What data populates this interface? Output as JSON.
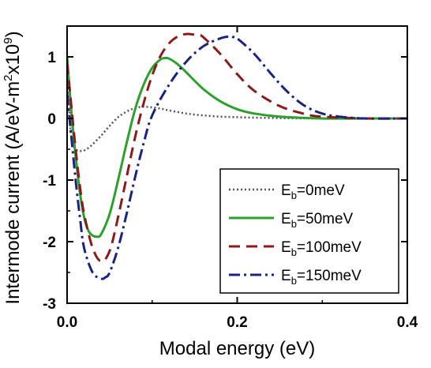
{
  "chart_data": {
    "type": "line",
    "xlabel": "Modal energy (eV)",
    "ylabel": "Intermode current (A/eV-m²x10⁹)",
    "xlim": [
      0.0,
      0.4
    ],
    "ylim": [
      -3.0,
      1.5
    ],
    "xticks": [
      0.0,
      0.2,
      0.4
    ],
    "xtick_labels": [
      "0.0",
      "0.2",
      "0.4"
    ],
    "yticks": [
      -3,
      -2,
      -1,
      0,
      1
    ],
    "ytick_labels": [
      "-3",
      "-2",
      "-1",
      "0",
      "1"
    ],
    "grid": false,
    "legend_position": "bottom-right",
    "series": [
      {
        "name": "Eb=0meV",
        "label_main": "E",
        "label_sub": "b",
        "label_rest": "=0meV",
        "color": "#555555",
        "dash": "dotted",
        "x": [
          0.0,
          0.004,
          0.008,
          0.012,
          0.016,
          0.02,
          0.025,
          0.03,
          0.04,
          0.05,
          0.06,
          0.07,
          0.08,
          0.09,
          0.1,
          0.11,
          0.12,
          0.14,
          0.16,
          0.18,
          0.2,
          0.25,
          0.3,
          0.35,
          0.4
        ],
        "y": [
          0.75,
          -0.2,
          -0.45,
          -0.52,
          -0.53,
          -0.52,
          -0.48,
          -0.42,
          -0.28,
          -0.12,
          0.02,
          0.11,
          0.17,
          0.19,
          0.18,
          0.16,
          0.13,
          0.08,
          0.05,
          0.03,
          0.02,
          0.005,
          0.0,
          0.0,
          0.0
        ]
      },
      {
        "name": "Eb=50meV",
        "label_main": "E",
        "label_sub": "b",
        "label_rest": "=50meV",
        "color": "#2ca02c",
        "dash": "solid",
        "x": [
          0.0,
          0.005,
          0.01,
          0.015,
          0.02,
          0.025,
          0.03,
          0.035,
          0.04,
          0.05,
          0.06,
          0.07,
          0.08,
          0.09,
          0.1,
          0.11,
          0.115,
          0.12,
          0.13,
          0.14,
          0.16,
          0.18,
          0.2,
          0.22,
          0.25,
          0.3,
          0.35,
          0.4
        ],
        "y": [
          1.0,
          0.1,
          -0.6,
          -1.2,
          -1.6,
          -1.82,
          -1.9,
          -1.92,
          -1.88,
          -1.55,
          -1.0,
          -0.4,
          0.15,
          0.55,
          0.82,
          0.96,
          0.98,
          0.97,
          0.88,
          0.75,
          0.48,
          0.28,
          0.15,
          0.08,
          0.03,
          0.0,
          0.0,
          0.0
        ]
      },
      {
        "name": "Eb=100meV",
        "label_main": "E",
        "label_sub": "b",
        "label_rest": "=100meV",
        "color": "#8b1a1a",
        "dash": "dashed",
        "x": [
          0.0,
          0.005,
          0.01,
          0.015,
          0.02,
          0.03,
          0.04,
          0.05,
          0.06,
          0.07,
          0.08,
          0.09,
          0.1,
          0.11,
          0.12,
          0.13,
          0.14,
          0.15,
          0.155,
          0.16,
          0.18,
          0.2,
          0.22,
          0.25,
          0.28,
          0.3,
          0.35,
          0.4
        ],
        "y": [
          0.9,
          0.2,
          -0.5,
          -1.1,
          -1.55,
          -2.1,
          -2.32,
          -2.15,
          -1.6,
          -0.95,
          -0.3,
          0.25,
          0.7,
          1.02,
          1.22,
          1.33,
          1.37,
          1.36,
          1.35,
          1.32,
          1.05,
          0.72,
          0.45,
          0.2,
          0.07,
          0.03,
          0.0,
          0.0
        ]
      },
      {
        "name": "Eb=150meV",
        "label_main": "E",
        "label_sub": "b",
        "label_rest": "=150meV",
        "color": "#1a237e",
        "dash": "dashdot",
        "x": [
          0.0,
          0.005,
          0.01,
          0.015,
          0.02,
          0.03,
          0.04,
          0.045,
          0.05,
          0.06,
          0.07,
          0.08,
          0.09,
          0.1,
          0.12,
          0.14,
          0.16,
          0.18,
          0.19,
          0.195,
          0.2,
          0.22,
          0.24,
          0.26,
          0.28,
          0.3,
          0.32,
          0.35,
          0.4
        ],
        "y": [
          0.4,
          -0.3,
          -1.0,
          -1.6,
          -2.1,
          -2.5,
          -2.6,
          -2.58,
          -2.5,
          -2.1,
          -1.55,
          -0.95,
          -0.4,
          0.05,
          0.55,
          0.92,
          1.17,
          1.3,
          1.33,
          1.32,
          1.3,
          1.05,
          0.72,
          0.42,
          0.2,
          0.08,
          0.03,
          0.0,
          0.0
        ]
      }
    ]
  }
}
